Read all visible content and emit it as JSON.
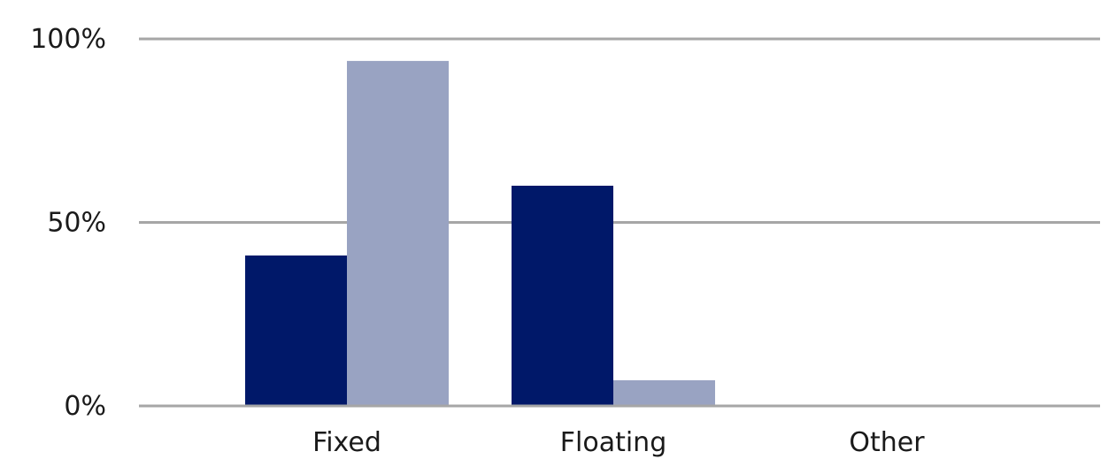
{
  "chart_data": {
    "type": "bar",
    "categories": [
      "Fixed",
      "Floating",
      "Other"
    ],
    "series": [
      {
        "values": [
          41,
          60,
          0
        ],
        "color": "#001869"
      },
      {
        "values": [
          94,
          7,
          0
        ],
        "color": "#99A3C2"
      }
    ],
    "ylim": [
      0,
      100
    ],
    "y_ticks": [
      {
        "value": 0,
        "label": "0%"
      },
      {
        "value": 50,
        "label": "50%"
      },
      {
        "value": 100,
        "label": "100%"
      }
    ],
    "grid": true,
    "grid_color": "#a6a6a6",
    "legend": "none"
  }
}
